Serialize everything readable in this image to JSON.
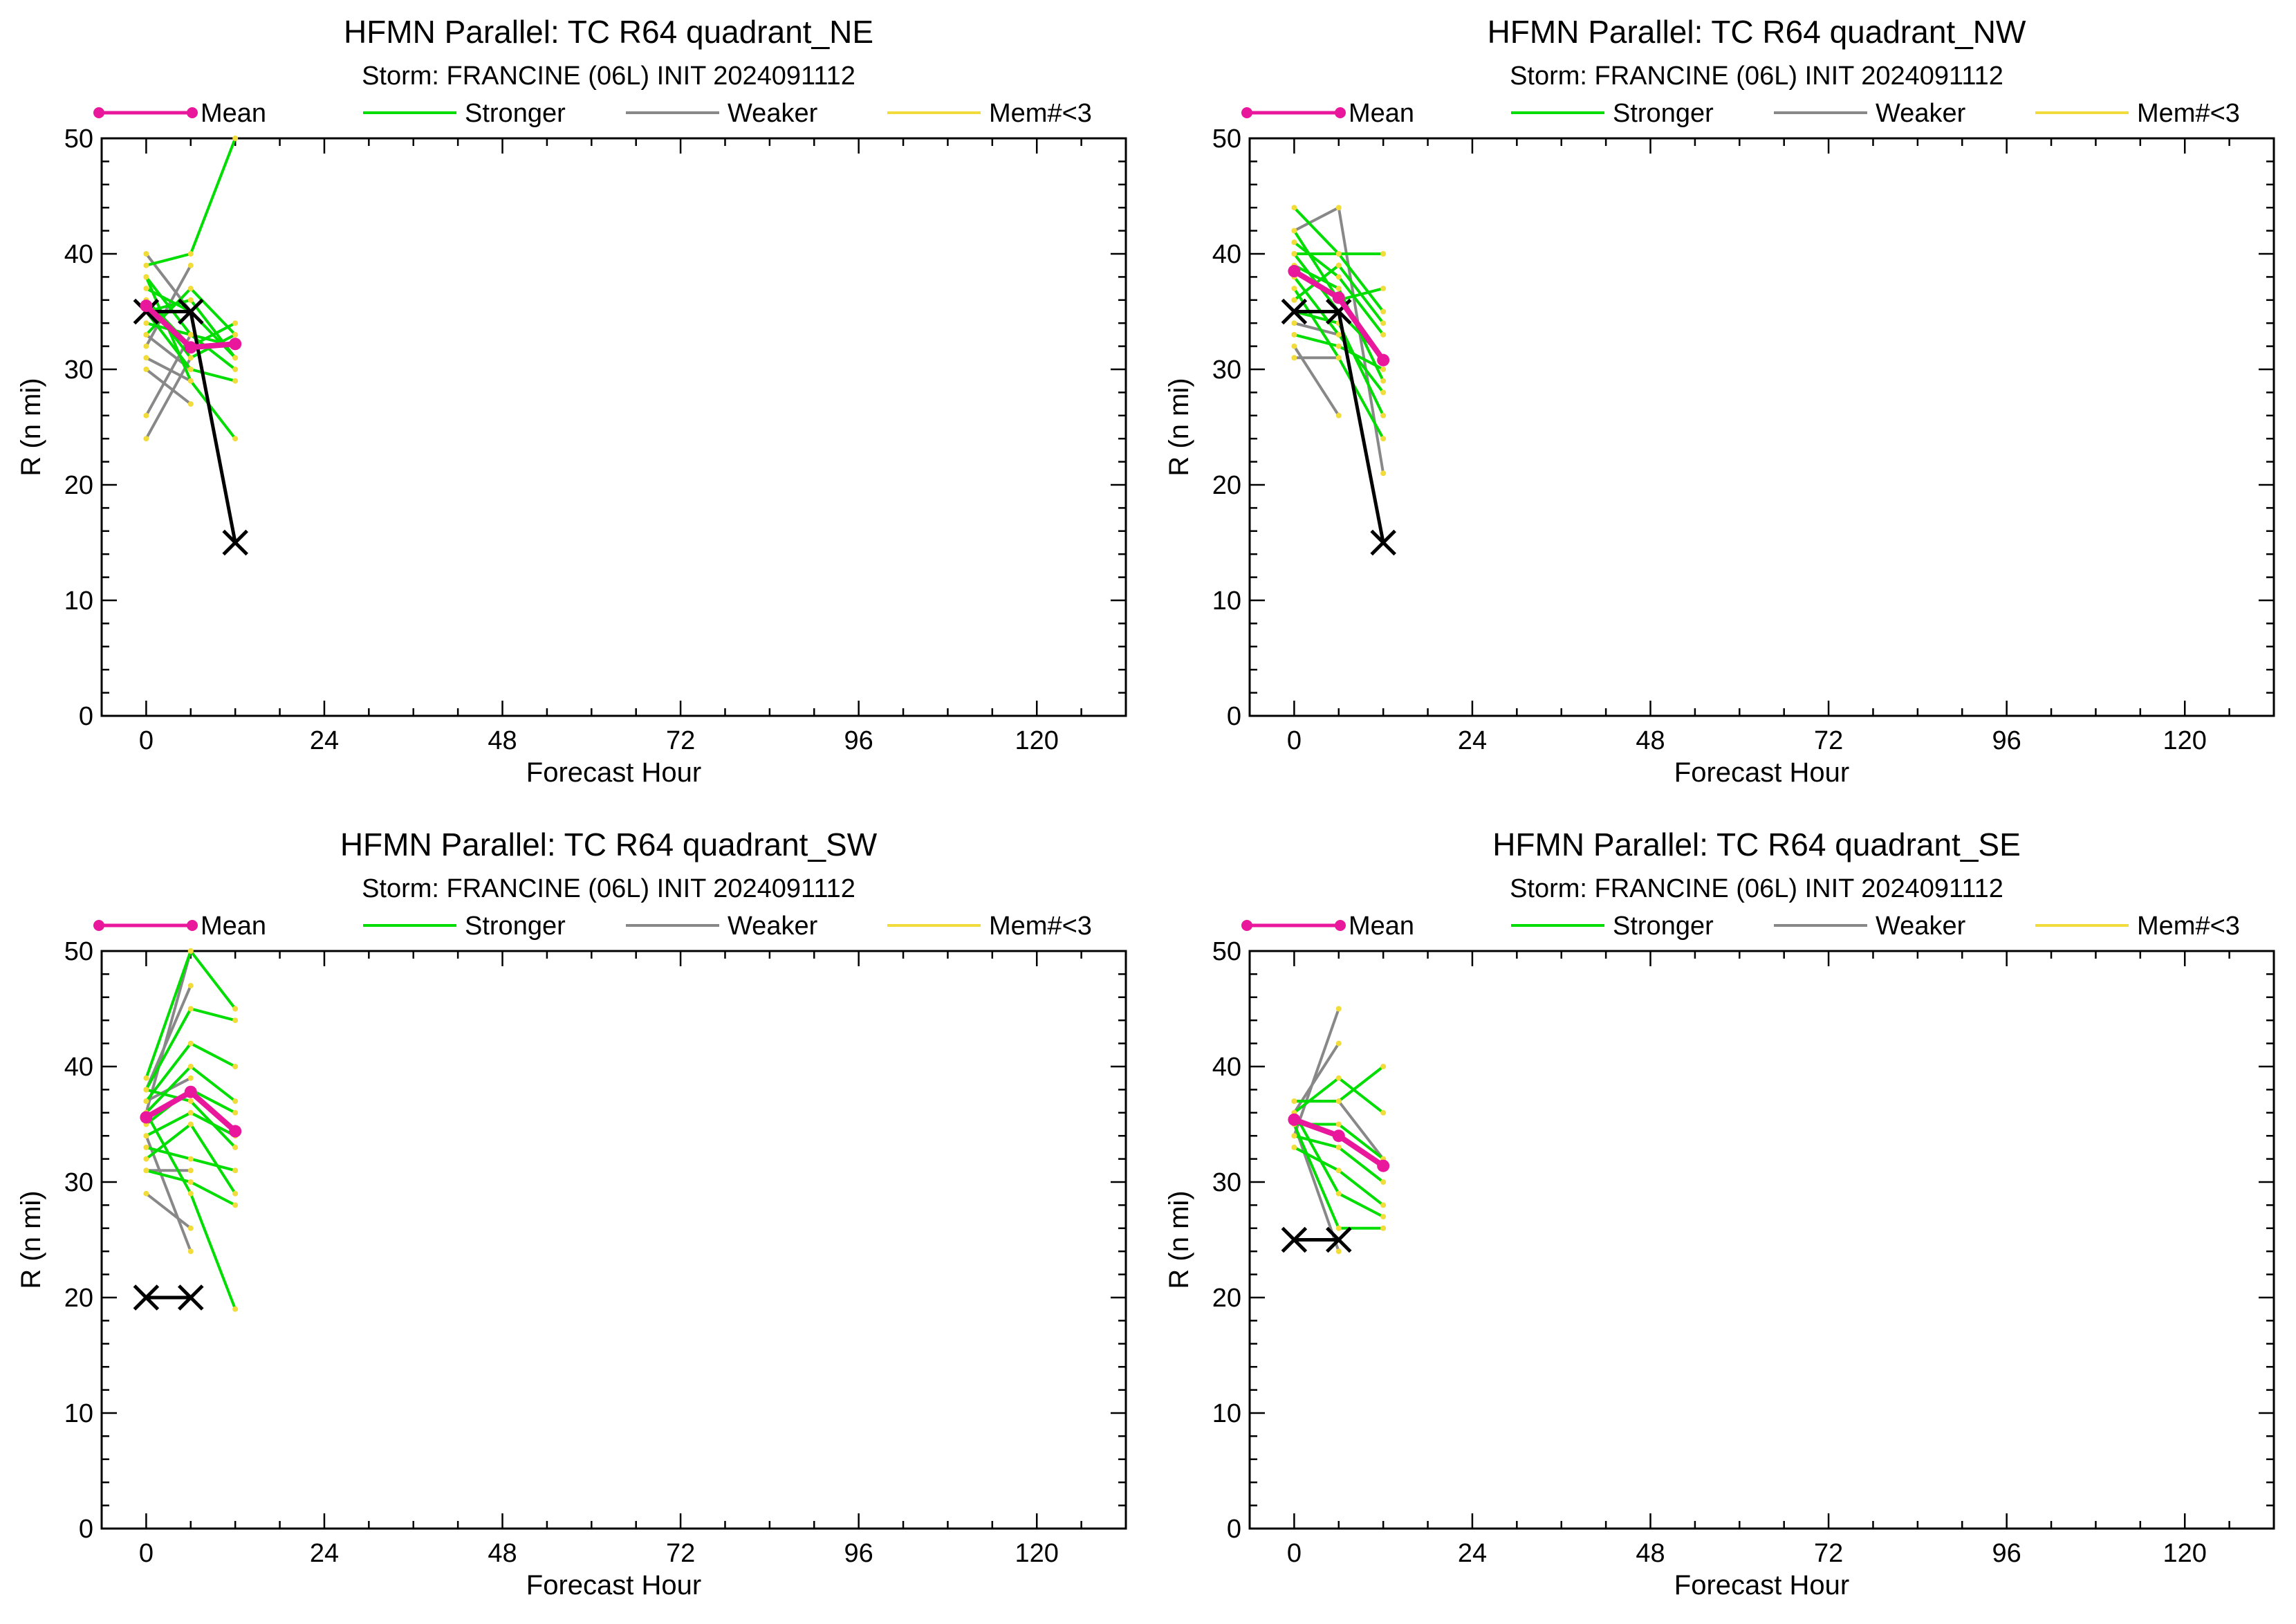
{
  "legend": {
    "mean_label": "Mean",
    "stronger_label": "Stronger",
    "weaker_label": "Weaker",
    "members_label": "Mem#<3",
    "colors": {
      "mean": "#e8179b",
      "stronger": "#00dd00",
      "weaker": "#888888",
      "members": "#f2dc3c",
      "best_track": "#000000"
    }
  },
  "chart_data": [
    {
      "type": "line",
      "title": "HFMN Parallel: TC  R64 quadrant_NE",
      "subtitle": "Storm: FRANCINE (06L) INIT 2024091112",
      "xlabel": "Forecast Hour",
      "ylabel": "R (n mi)",
      "xlim": [
        -6,
        132
      ],
      "ylim": [
        0,
        50
      ],
      "xticks": [
        "0",
        "24",
        "48",
        "72",
        "96",
        "120"
      ],
      "yticks": [
        "0",
        "10",
        "20",
        "30",
        "40",
        "50"
      ],
      "mean": {
        "x": [
          0,
          6,
          12
        ],
        "y": [
          35.5,
          31.9,
          32.2
        ]
      },
      "best_track": {
        "x": [
          0,
          6,
          12
        ],
        "y": [
          35,
          35,
          15
        ]
      },
      "stronger": [
        {
          "x": [
            0,
            6,
            12
          ],
          "y": [
            39,
            40,
            50
          ]
        },
        {
          "x": [
            0,
            6,
            12
          ],
          "y": [
            38,
            33,
            30
          ]
        },
        {
          "x": [
            0,
            6,
            12
          ],
          "y": [
            37,
            35,
            31
          ]
        },
        {
          "x": [
            0,
            6,
            12
          ],
          "y": [
            36,
            32,
            34
          ]
        },
        {
          "x": [
            0,
            6,
            12
          ],
          "y": [
            35,
            30,
            29
          ]
        },
        {
          "x": [
            0,
            6,
            12
          ],
          "y": [
            34,
            33,
            32
          ]
        },
        {
          "x": [
            0,
            6,
            12
          ],
          "y": [
            33,
            37,
            33
          ]
        },
        {
          "x": [
            0,
            6,
            12
          ],
          "y": [
            38,
            29,
            24
          ]
        },
        {
          "x": [
            0,
            6,
            12
          ],
          "y": [
            35,
            36,
            31
          ]
        },
        {
          "x": [
            0,
            6,
            12
          ],
          "y": [
            36,
            31,
            33
          ]
        }
      ],
      "weaker": [
        {
          "x": [
            0,
            6
          ],
          "y": [
            32,
            39
          ]
        },
        {
          "x": [
            0,
            6
          ],
          "y": [
            31,
            29
          ]
        },
        {
          "x": [
            0,
            6
          ],
          "y": [
            30,
            27
          ]
        },
        {
          "x": [
            0,
            6
          ],
          "y": [
            24,
            31
          ]
        },
        {
          "x": [
            0,
            6
          ],
          "y": [
            33,
            30
          ]
        },
        {
          "x": [
            0,
            6
          ],
          "y": [
            26,
            33
          ]
        },
        {
          "x": [
            0,
            6
          ],
          "y": [
            40,
            35
          ]
        }
      ]
    },
    {
      "type": "line",
      "title": "HFMN Parallel: TC  R64 quadrant_NW",
      "subtitle": "Storm: FRANCINE (06L) INIT 2024091112",
      "xlabel": "Forecast Hour",
      "ylabel": "R (n mi)",
      "xlim": [
        -6,
        132
      ],
      "ylim": [
        0,
        50
      ],
      "xticks": [
        "0",
        "24",
        "48",
        "72",
        "96",
        "120"
      ],
      "yticks": [
        "0",
        "10",
        "20",
        "30",
        "40",
        "50"
      ],
      "mean": {
        "x": [
          0,
          6,
          12
        ],
        "y": [
          38.5,
          36.2,
          30.8
        ]
      },
      "best_track": {
        "x": [
          0,
          6,
          12
        ],
        "y": [
          35,
          35,
          15
        ]
      },
      "stronger": [
        {
          "x": [
            0,
            6,
            12
          ],
          "y": [
            44,
            40,
            40
          ]
        },
        {
          "x": [
            0,
            6,
            12
          ],
          "y": [
            42,
            36,
            37
          ]
        },
        {
          "x": [
            0,
            6,
            12
          ],
          "y": [
            41,
            38,
            33
          ]
        },
        {
          "x": [
            0,
            6,
            12
          ],
          "y": [
            40,
            35,
            31
          ]
        },
        {
          "x": [
            0,
            6,
            12
          ],
          "y": [
            39,
            37,
            29
          ]
        },
        {
          "x": [
            0,
            6,
            12
          ],
          "y": [
            38,
            33,
            28
          ]
        },
        {
          "x": [
            0,
            6,
            12
          ],
          "y": [
            37,
            31,
            24
          ]
        },
        {
          "x": [
            0,
            6,
            12
          ],
          "y": [
            36,
            39,
            34
          ]
        },
        {
          "x": [
            0,
            6,
            12
          ],
          "y": [
            35,
            34,
            26
          ]
        },
        {
          "x": [
            0,
            6,
            12
          ],
          "y": [
            33,
            32,
            30
          ]
        },
        {
          "x": [
            0,
            6,
            12
          ],
          "y": [
            40,
            40,
            35
          ]
        }
      ],
      "weaker": [
        {
          "x": [
            0,
            6,
            12
          ],
          "y": [
            42,
            44,
            21
          ]
        },
        {
          "x": [
            0,
            6
          ],
          "y": [
            31,
            31
          ]
        },
        {
          "x": [
            0,
            6
          ],
          "y": [
            32,
            26
          ]
        },
        {
          "x": [
            0,
            6
          ],
          "y": [
            36,
            39
          ]
        },
        {
          "x": [
            0,
            6
          ],
          "y": [
            34,
            33
          ]
        }
      ]
    },
    {
      "type": "line",
      "title": "HFMN Parallel: TC  R64 quadrant_SW",
      "subtitle": "Storm: FRANCINE (06L) INIT 2024091112",
      "xlabel": "Forecast Hour",
      "ylabel": "R (n mi)",
      "xlim": [
        -6,
        132
      ],
      "ylim": [
        0,
        50
      ],
      "xticks": [
        "0",
        "24",
        "48",
        "72",
        "96",
        "120"
      ],
      "yticks": [
        "0",
        "10",
        "20",
        "30",
        "40",
        "50"
      ],
      "mean": {
        "x": [
          0,
          6,
          12
        ],
        "y": [
          35.6,
          37.8,
          34.4
        ]
      },
      "best_track": {
        "x": [
          0,
          6
        ],
        "y": [
          20,
          20
        ]
      },
      "stronger": [
        {
          "x": [
            0,
            6,
            12
          ],
          "y": [
            39,
            50,
            45
          ]
        },
        {
          "x": [
            0,
            6,
            12
          ],
          "y": [
            38,
            45,
            44
          ]
        },
        {
          "x": [
            0,
            6,
            12
          ],
          "y": [
            37,
            42,
            40
          ]
        },
        {
          "x": [
            0,
            6,
            12
          ],
          "y": [
            36,
            40,
            37
          ]
        },
        {
          "x": [
            0,
            6,
            12
          ],
          "y": [
            35,
            38,
            36
          ]
        },
        {
          "x": [
            0,
            6,
            12
          ],
          "y": [
            34,
            36,
            34
          ]
        },
        {
          "x": [
            0,
            6,
            12
          ],
          "y": [
            33,
            32,
            31
          ]
        },
        {
          "x": [
            0,
            6,
            12
          ],
          "y": [
            32,
            35,
            29
          ]
        },
        {
          "x": [
            0,
            6,
            12
          ],
          "y": [
            31,
            30,
            28
          ]
        },
        {
          "x": [
            0,
            6,
            12
          ],
          "y": [
            36,
            29,
            19
          ]
        },
        {
          "x": [
            0,
            6,
            12
          ],
          "y": [
            38,
            37,
            33
          ]
        }
      ],
      "weaker": [
        {
          "x": [
            0,
            6
          ],
          "y": [
            36,
            50
          ]
        },
        {
          "x": [
            0,
            6
          ],
          "y": [
            38,
            47
          ]
        },
        {
          "x": [
            0,
            6
          ],
          "y": [
            29,
            26
          ]
        },
        {
          "x": [
            0,
            6
          ],
          "y": [
            31,
            31
          ]
        },
        {
          "x": [
            0,
            6
          ],
          "y": [
            34,
            24
          ]
        },
        {
          "x": [
            0,
            6
          ],
          "y": [
            37,
            39
          ]
        }
      ]
    },
    {
      "type": "line",
      "title": "HFMN Parallel: TC  R64 quadrant_SE",
      "subtitle": "Storm: FRANCINE (06L) INIT 2024091112",
      "xlabel": "Forecast Hour",
      "ylabel": "R (n mi)",
      "xlim": [
        -6,
        132
      ],
      "ylim": [
        0,
        50
      ],
      "xticks": [
        "0",
        "24",
        "48",
        "72",
        "96",
        "120"
      ],
      "yticks": [
        "0",
        "10",
        "20",
        "30",
        "40",
        "50"
      ],
      "mean": {
        "x": [
          0,
          6,
          12
        ],
        "y": [
          35.4,
          34.0,
          31.4
        ]
      },
      "best_track": {
        "x": [
          0,
          6
        ],
        "y": [
          25,
          25
        ]
      },
      "stronger": [
        {
          "x": [
            0,
            6,
            12
          ],
          "y": [
            37,
            37,
            40
          ]
        },
        {
          "x": [
            0,
            6,
            12
          ],
          "y": [
            36,
            39,
            36
          ]
        },
        {
          "x": [
            0,
            6,
            12
          ],
          "y": [
            35,
            35,
            32
          ]
        },
        {
          "x": [
            0,
            6,
            12
          ],
          "y": [
            34,
            33,
            30
          ]
        },
        {
          "x": [
            0,
            6,
            12
          ],
          "y": [
            33,
            31,
            28
          ]
        },
        {
          "x": [
            0,
            6,
            12
          ],
          "y": [
            36,
            29,
            27
          ]
        },
        {
          "x": [
            0,
            6,
            12
          ],
          "y": [
            35,
            26,
            26
          ]
        }
      ],
      "weaker": [
        {
          "x": [
            0,
            6
          ],
          "y": [
            34,
            45
          ]
        },
        {
          "x": [
            0,
            6
          ],
          "y": [
            36,
            42
          ]
        },
        {
          "x": [
            0,
            6
          ],
          "y": [
            35,
            24
          ]
        },
        {
          "x": [
            0,
            6,
            12
          ],
          "y": [
            37,
            37,
            32
          ]
        }
      ]
    }
  ]
}
